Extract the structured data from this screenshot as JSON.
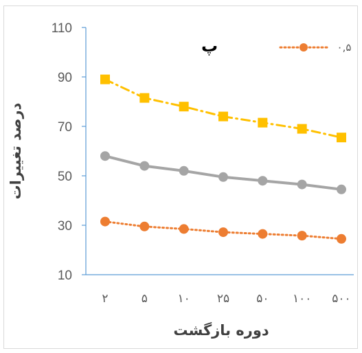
{
  "chart_data": {
    "type": "line",
    "panel_label": "پ",
    "ylabel": "درصد تغییرات",
    "xlabel": "دوره بازگشت",
    "ylim": [
      10,
      110
    ],
    "yticks": [
      "10",
      "30",
      "50",
      "70",
      "90",
      "110"
    ],
    "categories": [
      "۲",
      "۵",
      "۱۰",
      "۲۵",
      "۵۰",
      "۱۰۰",
      "۵۰۰"
    ],
    "legend": {
      "position": "top-right",
      "label": "۰,۵"
    },
    "series": [
      {
        "name": "۰,۵",
        "style": "dotted",
        "marker": "circle",
        "color": "#ED7D31",
        "values": [
          31.5,
          29.5,
          28.5,
          27.2,
          26.5,
          25.8,
          24.5
        ]
      },
      {
        "style": "solid",
        "marker": "circle",
        "color": "#A5A5A5",
        "values": [
          58,
          54,
          52,
          49.5,
          48,
          46.5,
          44.5
        ]
      },
      {
        "style": "dashdot",
        "marker": "square",
        "color": "#FFC000",
        "values": [
          89,
          81.5,
          78,
          74,
          71.5,
          69,
          65.5
        ]
      }
    ]
  }
}
